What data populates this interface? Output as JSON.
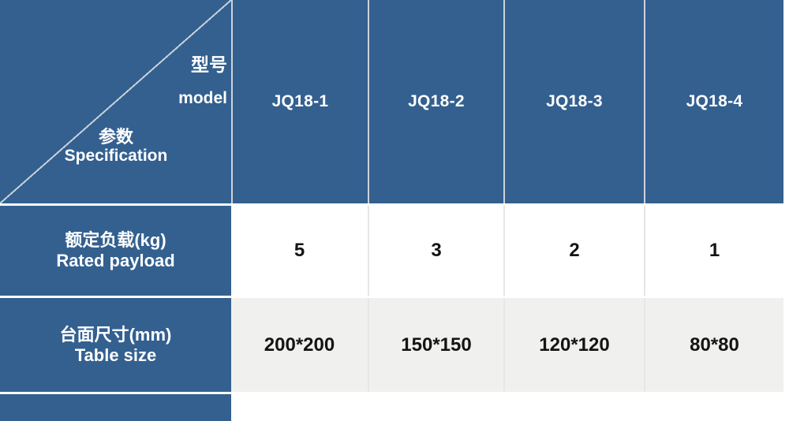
{
  "colors": {
    "header_blue": "#33608f",
    "row_alt_bg": "#f0f0ef",
    "row_bg": "#ffffff",
    "grid_line_header": "#ccd3dc",
    "grid_line_data": "#e6e6e6",
    "text_light": "#ffffff",
    "text_dark": "#141414"
  },
  "table": {
    "corner": {
      "model_cn": "型号",
      "model_en": "model",
      "spec_cn": "参数",
      "spec_en": "Specification"
    },
    "columns": [
      "JQ18-1",
      "JQ18-2",
      "JQ18-3",
      "JQ18-4"
    ],
    "rows": [
      {
        "label_cn": "额定负载(kg)",
        "label_en": "Rated payload",
        "values": [
          "5",
          "3",
          "2",
          "1"
        ]
      },
      {
        "label_cn": "台面尺寸(mm)",
        "label_en": "Table size",
        "values": [
          "200*200",
          "150*150",
          "120*120",
          "80*80"
        ]
      }
    ]
  }
}
